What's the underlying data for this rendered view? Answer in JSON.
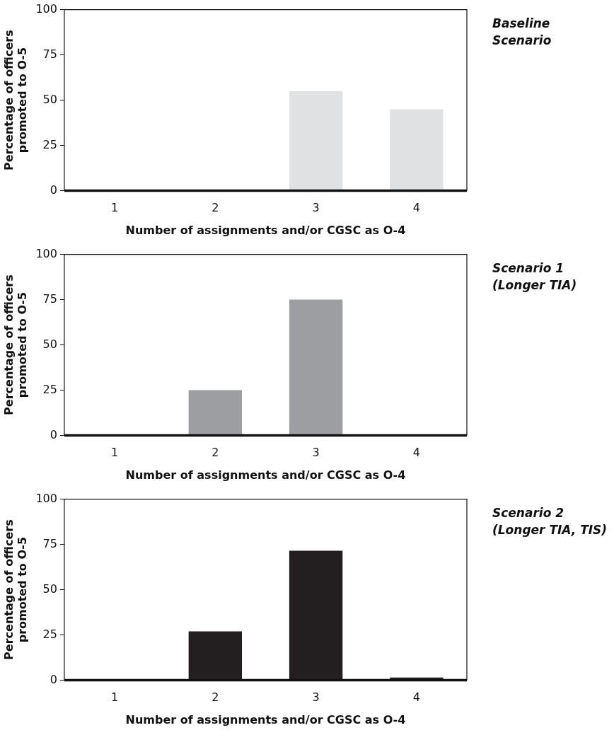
{
  "chart_data": [
    {
      "type": "bar",
      "annotations": [
        "Baseline\nScenario"
      ],
      "xlabel": "Number of assignments and/or CGSC as O-4",
      "ylabel": "Percentage of officers promoted to O-5",
      "categories": [
        "1",
        "2",
        "3",
        "4"
      ],
      "values": [
        0,
        0,
        55,
        45
      ],
      "color": "#e0e1e3",
      "ylim": [
        0,
        100
      ],
      "yticks": [
        0,
        25,
        50,
        75,
        100
      ],
      "grid": false,
      "legend": false
    },
    {
      "type": "bar",
      "annotations": [
        "Scenario 1\n(Longer TIA)"
      ],
      "xlabel": "Number of assignments and/or CGSC as O-4",
      "ylabel": "Percentage of officers promoted to O-5",
      "categories": [
        "1",
        "2",
        "3",
        "4"
      ],
      "values": [
        0,
        25,
        75,
        0
      ],
      "color": "#9d9ea2",
      "ylim": [
        0,
        100
      ],
      "yticks": [
        0,
        25,
        50,
        75,
        100
      ],
      "grid": false,
      "legend": false
    },
    {
      "type": "bar",
      "annotations": [
        "Scenario 2\n(Longer TIA, TIS)"
      ],
      "xlabel": "Number of assignments and/or CGSC as O-4",
      "ylabel": "Percentage of officers promoted to O-5",
      "categories": [
        "1",
        "2",
        "3",
        "4"
      ],
      "values": [
        0,
        27,
        71.5,
        1.5
      ],
      "color": "#231f20",
      "ylim": [
        0,
        100
      ],
      "yticks": [
        0,
        25,
        50,
        75,
        100
      ],
      "grid": false,
      "legend": false
    }
  ]
}
